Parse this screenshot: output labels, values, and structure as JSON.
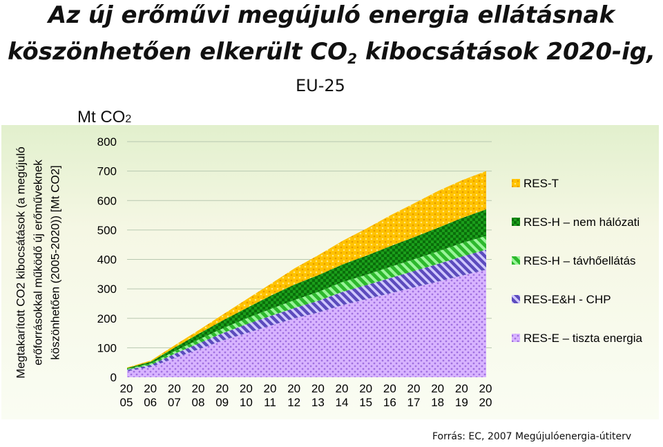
{
  "header": {
    "title_line1": "Az új erőművi megújuló energia ellátásnak",
    "title_line2_pre": "köszönhetően elkerült CO",
    "title_line2_sub": "2",
    "title_line2_post": " kibocsátások 2020-ig,",
    "subtitle": "EU-25"
  },
  "unit": {
    "main": "Mt CO",
    "sub": "2"
  },
  "source": "Forrás: EC, 2007 Megújulóenergia-útiterv",
  "chart_data": {
    "type": "area",
    "stacked": true,
    "ylabel": "Megtakarított CO2 kibocsátások (a megújuló erőforrásokkal működő új erőműveknek köszönhetően (2005-2020)) [Mt CO2]",
    "x": [
      "2005",
      "2006",
      "2007",
      "2008",
      "2009",
      "2010",
      "2011",
      "2012",
      "2013",
      "2014",
      "2015",
      "2016",
      "2017",
      "2018",
      "2019",
      "2020"
    ],
    "x_tick_labels": [
      [
        "20",
        "05"
      ],
      [
        "20",
        "06"
      ],
      [
        "20",
        "07"
      ],
      [
        "20",
        "08"
      ],
      [
        "20",
        "09"
      ],
      [
        "20",
        "10"
      ],
      [
        "20",
        "11"
      ],
      [
        "20",
        "12"
      ],
      [
        "20",
        "13"
      ],
      [
        "20",
        "14"
      ],
      [
        "20",
        "15"
      ],
      [
        "20",
        "16"
      ],
      [
        "20",
        "17"
      ],
      [
        "20",
        "18"
      ],
      [
        "20",
        "19"
      ],
      [
        "20",
        "20"
      ]
    ],
    "ylim": [
      0,
      800
    ],
    "yticks": [
      0,
      100,
      200,
      300,
      400,
      500,
      600,
      700,
      800
    ],
    "grid": "horizontal",
    "legend_position": "right",
    "series": [
      {
        "name": "RES-E – tiszta energia",
        "color": "#cc99ff",
        "pattern": "dots",
        "values": [
          20,
          35,
          65,
          95,
          125,
          150,
          175,
          200,
          220,
          245,
          265,
          285,
          305,
          325,
          345,
          365
        ]
      },
      {
        "name": "RES-E&H - CHP",
        "color": "#5c4bbd",
        "pattern": "diagonal",
        "values": [
          5,
          7,
          15,
          20,
          25,
          30,
          33,
          35,
          40,
          45,
          48,
          52,
          56,
          60,
          65,
          68
        ]
      },
      {
        "name": "RES-H – távhőellátás",
        "color": "#33cc33",
        "pattern": "diagonal",
        "values": [
          3,
          5,
          9,
          13,
          16,
          20,
          24,
          27,
          30,
          33,
          35,
          38,
          40,
          43,
          46,
          47
        ]
      },
      {
        "name": "RES-H – nem hálózati",
        "color": "#009900",
        "pattern": "checker",
        "values": [
          3,
          6,
          12,
          20,
          27,
          35,
          45,
          53,
          57,
          60,
          65,
          70,
          75,
          80,
          85,
          90
        ]
      },
      {
        "name": "RES-T",
        "color": "#ffcc00",
        "pattern": "dots",
        "values": [
          2,
          4,
          8,
          12,
          20,
          30,
          40,
          55,
          68,
          80,
          92,
          105,
          115,
          125,
          128,
          130
        ]
      }
    ],
    "legend_order": [
      4,
      3,
      2,
      1,
      0
    ]
  }
}
